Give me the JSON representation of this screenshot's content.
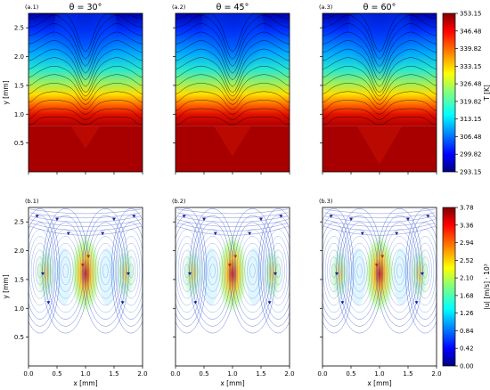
{
  "chart_data": [
    {
      "type": "heatmap",
      "group": "temperature",
      "panels": [
        {
          "label": "(a.1)",
          "title": "θ = 30°",
          "notch_angle_deg": 30
        },
        {
          "label": "(a.2)",
          "title": "θ = 45°",
          "notch_angle_deg": 45
        },
        {
          "label": "(a.3)",
          "title": "θ = 60°",
          "notch_angle_deg": 60
        }
      ],
      "xlim": [
        0.0,
        2.0
      ],
      "ylim": [
        0.0,
        2.75
      ],
      "xticks": [
        "0.0",
        "0.5",
        "1.0",
        "1.5",
        "2.0"
      ],
      "yticks": [
        "0.5",
        "1.0",
        "1.5",
        "2.0",
        "2.5"
      ],
      "ylabel": "y [mm]",
      "colorbar": {
        "label": "T [K]",
        "min": 293.15,
        "max": 353.15,
        "ticks": [
          "353.15",
          "346.48",
          "339.82",
          "333.15",
          "326.48",
          "319.82",
          "313.15",
          "306.48",
          "299.82",
          "293.15"
        ]
      },
      "colormap": "jet",
      "solid_region_top_mm": 0.8,
      "contour_lines": true
    },
    {
      "type": "heatmap",
      "group": "velocity magnitude with streamlines",
      "panels": [
        {
          "label": "(b.1)",
          "notch_angle_deg": 30
        },
        {
          "label": "(b.2)",
          "notch_angle_deg": 45
        },
        {
          "label": "(b.3)",
          "notch_angle_deg": 60
        }
      ],
      "xlim": [
        0.0,
        2.0
      ],
      "ylim": [
        0.0,
        2.75
      ],
      "xticks": [
        "0.0",
        "0.5",
        "1.0",
        "1.5",
        "2.0"
      ],
      "yticks": [
        "0.5",
        "1.0",
        "1.5",
        "2.0",
        "2.5"
      ],
      "xlabel": "x [mm]",
      "ylabel": "y [mm]",
      "colorbar": {
        "label": "|u| [m/s] · 10³",
        "min": 0.0,
        "max": 3.78,
        "ticks": [
          "3.78",
          "3.36",
          "2.94",
          "2.52",
          "2.10",
          "1.68",
          "1.26",
          "0.84",
          "0.42",
          "0.00"
        ]
      },
      "colormap": "jet",
      "solid_color": "#111111",
      "streamlines": true
    }
  ]
}
